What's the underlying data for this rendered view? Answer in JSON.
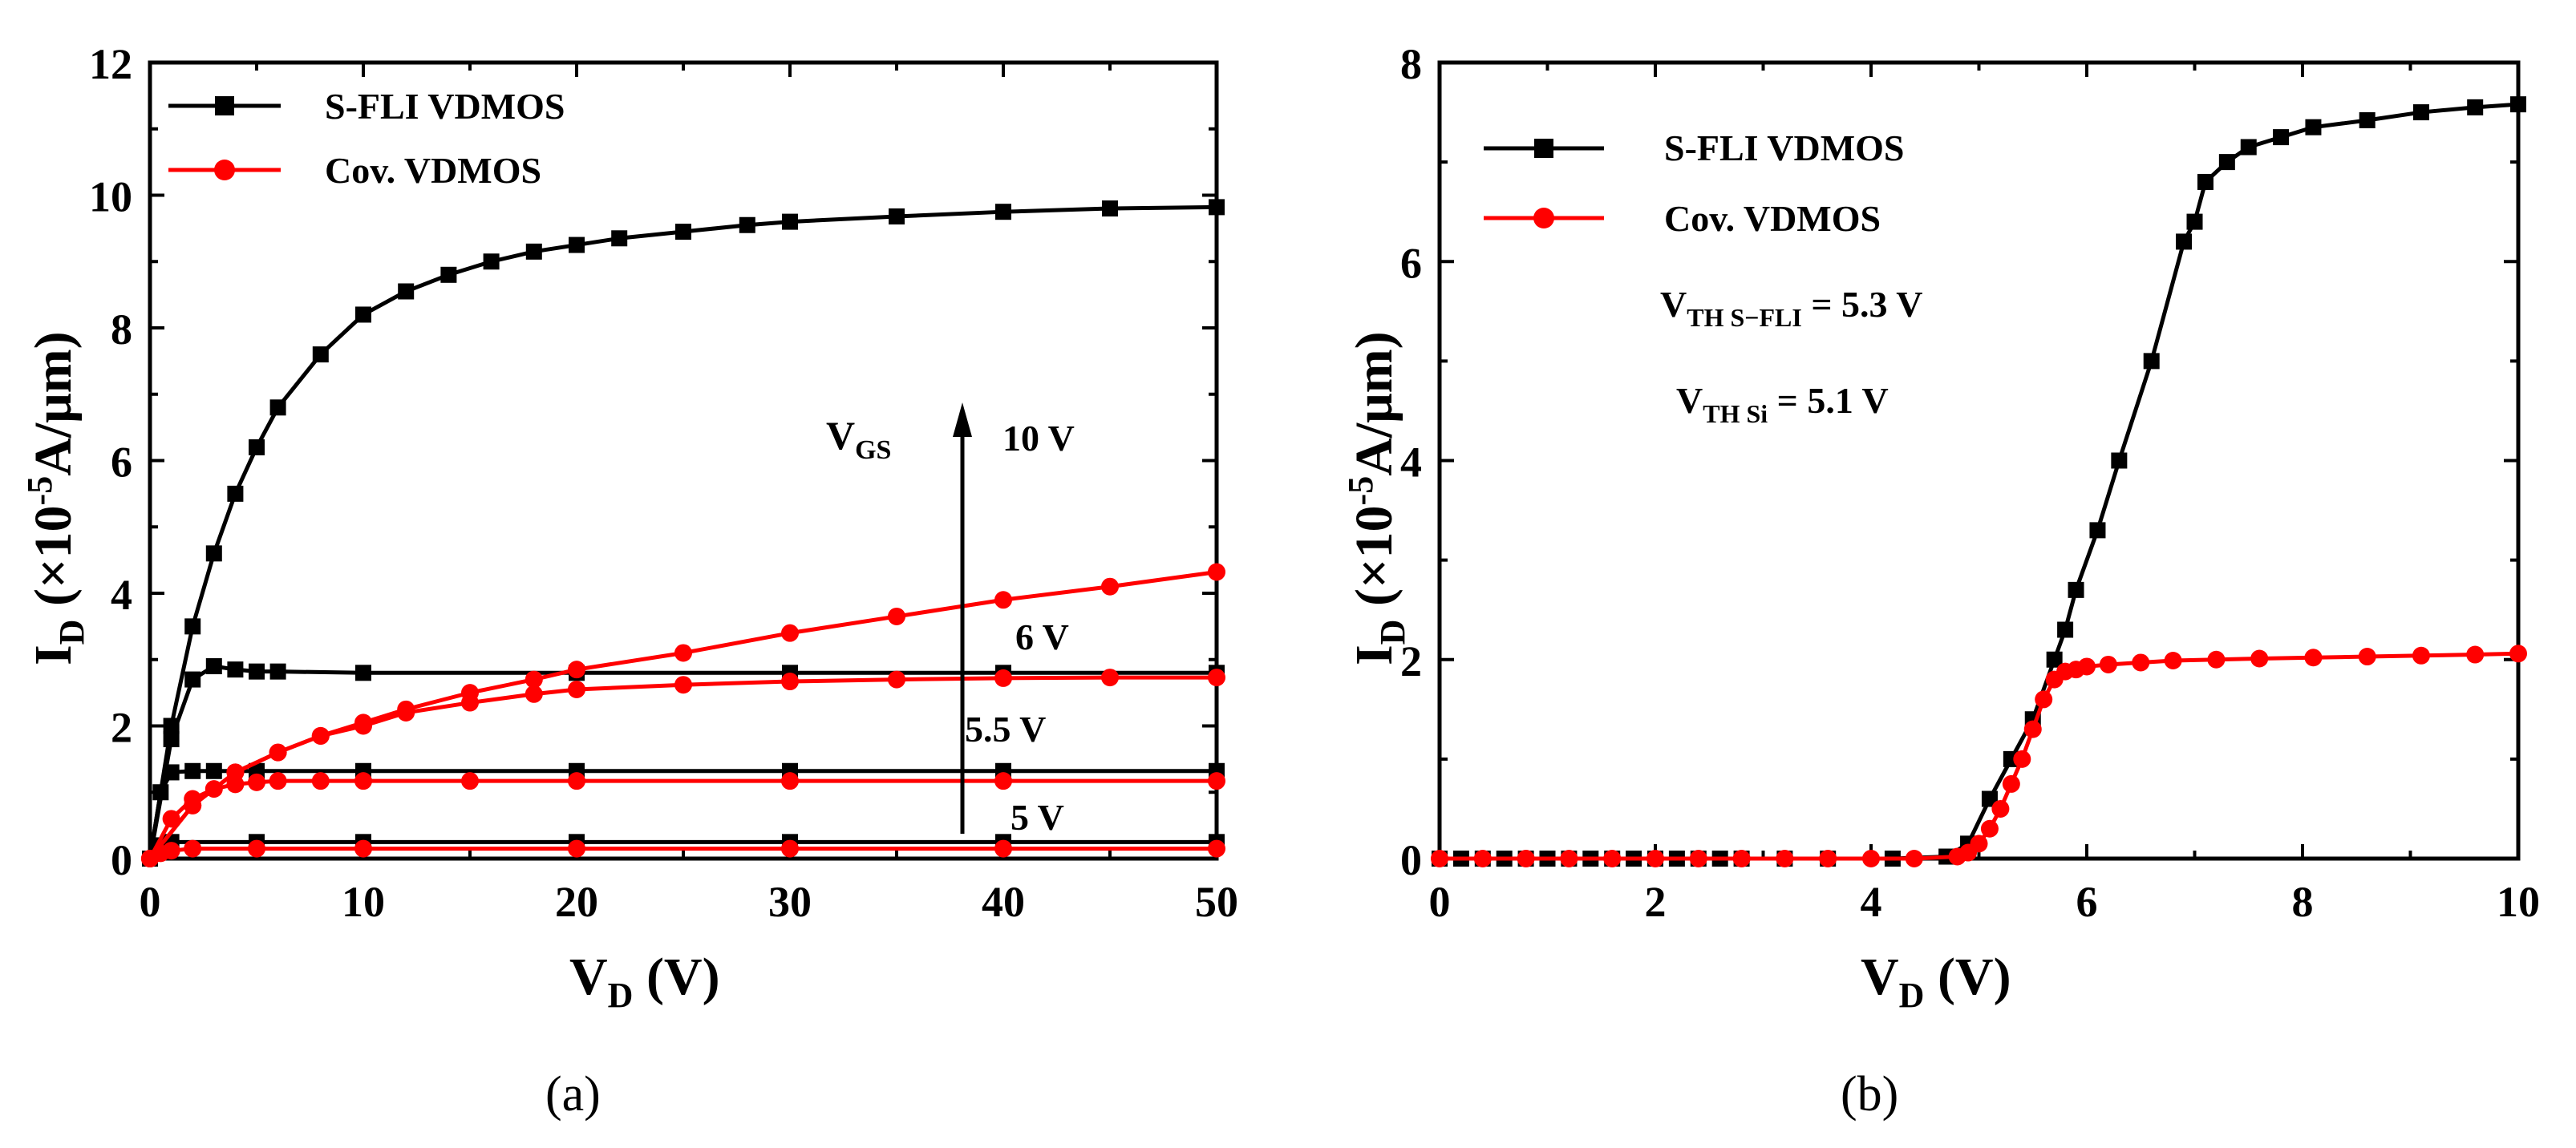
{
  "chart_data": [
    {
      "type": "line",
      "panel": "a",
      "caption": "(a)",
      "xlabel": {
        "main": "V",
        "sub": "D",
        "rest": " (V)"
      },
      "ylabel": {
        "main": "I",
        "sub": "D",
        "rest": " (×10",
        "sup": "-5",
        "rest2": "A/μm)"
      },
      "xlim": [
        0,
        50
      ],
      "ylim": [
        0,
        12
      ],
      "xticks": [
        0,
        10,
        20,
        30,
        40,
        50
      ],
      "yticks": [
        0,
        2,
        4,
        6,
        8,
        10,
        12
      ],
      "xtick_labels": [
        "0",
        "10",
        "20",
        "30",
        "40",
        "50"
      ],
      "ytick_labels": [
        "0",
        "2",
        "4",
        "6",
        "8",
        "10",
        "12"
      ],
      "legend": [
        {
          "label": "S-FLI VDMOS",
          "color": "#000000",
          "marker": "square"
        },
        {
          "label": "Cov. VDMOS",
          "color": "#ff0000",
          "marker": "circle"
        }
      ],
      "annotations": {
        "vgs_main": "V",
        "vgs_sub": "GS",
        "vgs_10": "10 V",
        "vgs_6": "6 V",
        "vgs_55": "5.5 V",
        "vgs_5": "5 V"
      },
      "series": [
        {
          "name": "S-FLI VDMOS V_GS=10 V",
          "color": "#000000",
          "marker": "square",
          "x": [
            0,
            1,
            2,
            3,
            4,
            5,
            6,
            8,
            10,
            12,
            14,
            16,
            18,
            20,
            22,
            25,
            28,
            30,
            35,
            40,
            45,
            50
          ],
          "y": [
            0,
            2.0,
            3.5,
            4.6,
            5.5,
            6.2,
            6.8,
            7.6,
            8.2,
            8.55,
            8.8,
            9.0,
            9.15,
            9.25,
            9.35,
            9.45,
            9.55,
            9.6,
            9.68,
            9.75,
            9.8,
            9.82
          ]
        },
        {
          "name": "S-FLI VDMOS V_GS=6 V",
          "color": "#000000",
          "marker": "square",
          "x": [
            0,
            1,
            2,
            3,
            4,
            5,
            6,
            10,
            20,
            30,
            40,
            50
          ],
          "y": [
            0,
            1.8,
            2.7,
            2.9,
            2.85,
            2.82,
            2.82,
            2.8,
            2.8,
            2.8,
            2.8,
            2.8
          ]
        },
        {
          "name": "S-FLI VDMOS V_GS=5.5 V",
          "color": "#000000",
          "marker": "square",
          "x": [
            0,
            0.5,
            1,
            2,
            3,
            5,
            10,
            20,
            30,
            40,
            50
          ],
          "y": [
            0,
            1.0,
            1.3,
            1.32,
            1.32,
            1.32,
            1.32,
            1.32,
            1.32,
            1.32,
            1.32
          ]
        },
        {
          "name": "S-FLI VDMOS V_GS=5 V",
          "color": "#000000",
          "marker": "square",
          "x": [
            0,
            0.5,
            1,
            5,
            10,
            20,
            30,
            40,
            50
          ],
          "y": [
            0,
            0.2,
            0.25,
            0.25,
            0.25,
            0.25,
            0.25,
            0.25,
            0.25
          ]
        },
        {
          "name": "Cov. VDMOS V_GS=10 V",
          "color": "#ff0000",
          "marker": "circle",
          "x": [
            0,
            2,
            4,
            6,
            8,
            10,
            12,
            15,
            18,
            20,
            25,
            30,
            35,
            40,
            45,
            50
          ],
          "y": [
            0,
            0.8,
            1.3,
            1.6,
            1.85,
            2.05,
            2.25,
            2.5,
            2.7,
            2.85,
            3.1,
            3.4,
            3.65,
            3.9,
            4.1,
            4.32
          ]
        },
        {
          "name": "Cov. VDMOS V_GS=6 V",
          "color": "#ff0000",
          "marker": "circle",
          "x": [
            0,
            2,
            4,
            6,
            8,
            10,
            12,
            15,
            18,
            20,
            25,
            30,
            35,
            40,
            45,
            50
          ],
          "y": [
            0,
            0.8,
            1.3,
            1.6,
            1.85,
            2.0,
            2.2,
            2.35,
            2.48,
            2.55,
            2.62,
            2.67,
            2.7,
            2.72,
            2.73,
            2.73
          ]
        },
        {
          "name": "Cov. VDMOS V_GS=5.5 V",
          "color": "#ff0000",
          "marker": "circle",
          "x": [
            0,
            1,
            2,
            3,
            4,
            5,
            6,
            8,
            10,
            15,
            20,
            30,
            40,
            50
          ],
          "y": [
            0,
            0.6,
            0.9,
            1.05,
            1.12,
            1.15,
            1.17,
            1.17,
            1.17,
            1.17,
            1.17,
            1.17,
            1.17,
            1.17
          ]
        },
        {
          "name": "Cov. VDMOS V_GS=5 V",
          "color": "#ff0000",
          "marker": "circle",
          "x": [
            0,
            0.5,
            1,
            2,
            5,
            10,
            20,
            30,
            40,
            50
          ],
          "y": [
            0,
            0.08,
            0.12,
            0.15,
            0.15,
            0.15,
            0.15,
            0.15,
            0.15,
            0.15
          ]
        }
      ]
    },
    {
      "type": "line",
      "panel": "b",
      "caption": "(b)",
      "xlabel": {
        "main": "V",
        "sub": "D",
        "rest": " (V)"
      },
      "ylabel": {
        "main": "I",
        "sub": "D",
        "rest": " (×10",
        "sup": "-5",
        "rest2": "A/μm)"
      },
      "xlim": [
        0,
        10
      ],
      "ylim": [
        0,
        8
      ],
      "xticks": [
        0,
        2,
        4,
        6,
        8,
        10
      ],
      "yticks": [
        0,
        2,
        4,
        6,
        8
      ],
      "xtick_labels": [
        "0",
        "2",
        "4",
        "6",
        "8",
        "10"
      ],
      "ytick_labels": [
        "0",
        "2",
        "4",
        "6",
        "8"
      ],
      "legend": [
        {
          "label": "S-FLI VDMOS",
          "color": "#000000",
          "marker": "square"
        },
        {
          "label": "Cov. VDMOS",
          "color": "#ff0000",
          "marker": "circle"
        }
      ],
      "annotations": {
        "vth1_main": "V",
        "vth1_sub": "TH S−FLI",
        "vth1_value": " = 5.3 V",
        "vth2_main": "V",
        "vth2_sub": "TH Si",
        "vth2_value": " = 5.1 V"
      },
      "series": [
        {
          "name": "S-FLI VDMOS",
          "color": "#000000",
          "marker": "square",
          "x": [
            0,
            0.2,
            0.4,
            0.6,
            0.8,
            1.0,
            1.2,
            1.4,
            1.6,
            1.8,
            2.0,
            2.2,
            2.4,
            2.6,
            2.8,
            3.2,
            3.6,
            4.2,
            4.7,
            4.9,
            5.1,
            5.3,
            5.5,
            5.7,
            5.8,
            5.9,
            6.1,
            6.3,
            6.6,
            6.9,
            7.0,
            7.1,
            7.3,
            7.5,
            7.8,
            8.1,
            8.6,
            9.1,
            9.6,
            10.0
          ],
          "y": [
            0,
            0,
            0,
            0,
            0,
            0,
            0,
            0,
            0,
            0,
            0,
            0,
            0,
            0,
            0,
            0,
            0,
            0,
            0.02,
            0.15,
            0.6,
            1.0,
            1.4,
            2.0,
            2.3,
            2.7,
            3.3,
            4.0,
            5.0,
            6.2,
            6.4,
            6.8,
            7.0,
            7.15,
            7.25,
            7.35,
            7.42,
            7.5,
            7.55,
            7.58
          ]
        },
        {
          "name": "Cov. VDMOS",
          "color": "#ff0000",
          "marker": "circle",
          "x": [
            0,
            0.4,
            0.8,
            1.2,
            1.6,
            2.0,
            2.4,
            2.8,
            3.2,
            3.6,
            4.0,
            4.4,
            4.8,
            4.9,
            5.0,
            5.1,
            5.2,
            5.3,
            5.4,
            5.5,
            5.6,
            5.7,
            5.8,
            5.9,
            6.0,
            6.2,
            6.5,
            6.8,
            7.2,
            7.6,
            8.1,
            8.6,
            9.1,
            9.6,
            10.0
          ],
          "y": [
            0,
            0,
            0,
            0,
            0,
            0,
            0,
            0,
            0,
            0,
            0,
            0,
            0.02,
            0.06,
            0.15,
            0.3,
            0.5,
            0.75,
            1.0,
            1.3,
            1.6,
            1.8,
            1.88,
            1.9,
            1.93,
            1.95,
            1.97,
            1.99,
            2.0,
            2.01,
            2.02,
            2.03,
            2.04,
            2.05,
            2.06
          ]
        }
      ]
    }
  ]
}
